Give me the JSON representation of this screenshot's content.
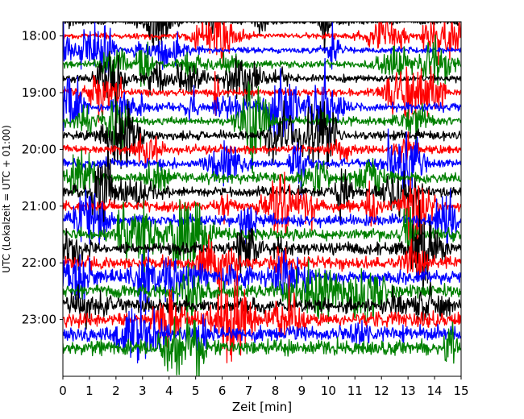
{
  "chart_data": {
    "type": "line",
    "title": "",
    "xlabel": "Zeit  [min]",
    "ylabel": "UTC (Lokalzeit = UTC + 01:00)",
    "xlim": [
      0,
      15
    ],
    "x_ticks": [
      "0",
      "1",
      "2",
      "3",
      "4",
      "5",
      "6",
      "7",
      "8",
      "9",
      "10",
      "11",
      "12",
      "13",
      "14",
      "15"
    ],
    "y_ticks": [
      {
        "label": "18:00",
        "hour": 18.0
      },
      {
        "label": "19:00",
        "hour": 19.0
      },
      {
        "label": "20:00",
        "hour": 20.0
      },
      {
        "label": "21:00",
        "hour": 21.0
      },
      {
        "label": "22:00",
        "hour": 22.0
      },
      {
        "label": "23:00",
        "hour": 23.0
      }
    ],
    "time_window_utc": [
      "17:45",
      "24:00"
    ],
    "trace_interval_min": 15,
    "trace_colors_cycle": [
      "#000000",
      "#ff0000",
      "#0000ff",
      "#008000"
    ],
    "grid": false,
    "legend": "none",
    "series": [
      {
        "start": "17:45",
        "color": "#000000"
      },
      {
        "start": "18:00",
        "color": "#ff0000"
      },
      {
        "start": "18:15",
        "color": "#0000ff"
      },
      {
        "start": "18:30",
        "color": "#008000"
      },
      {
        "start": "18:45",
        "color": "#000000"
      },
      {
        "start": "19:00",
        "color": "#ff0000"
      },
      {
        "start": "19:15",
        "color": "#0000ff"
      },
      {
        "start": "19:30",
        "color": "#008000"
      },
      {
        "start": "19:45",
        "color": "#000000"
      },
      {
        "start": "20:00",
        "color": "#ff0000"
      },
      {
        "start": "20:15",
        "color": "#0000ff"
      },
      {
        "start": "20:30",
        "color": "#008000"
      },
      {
        "start": "20:45",
        "color": "#000000"
      },
      {
        "start": "21:00",
        "color": "#ff0000"
      },
      {
        "start": "21:15",
        "color": "#0000ff"
      },
      {
        "start": "21:30",
        "color": "#008000"
      },
      {
        "start": "21:45",
        "color": "#000000"
      },
      {
        "start": "22:00",
        "color": "#ff0000"
      },
      {
        "start": "22:15",
        "color": "#0000ff"
      },
      {
        "start": "22:30",
        "color": "#008000"
      },
      {
        "start": "22:45",
        "color": "#000000"
      },
      {
        "start": "23:00",
        "color": "#ff0000"
      },
      {
        "start": "23:15",
        "color": "#0000ff"
      },
      {
        "start": "23:30",
        "color": "#008000"
      }
    ]
  }
}
